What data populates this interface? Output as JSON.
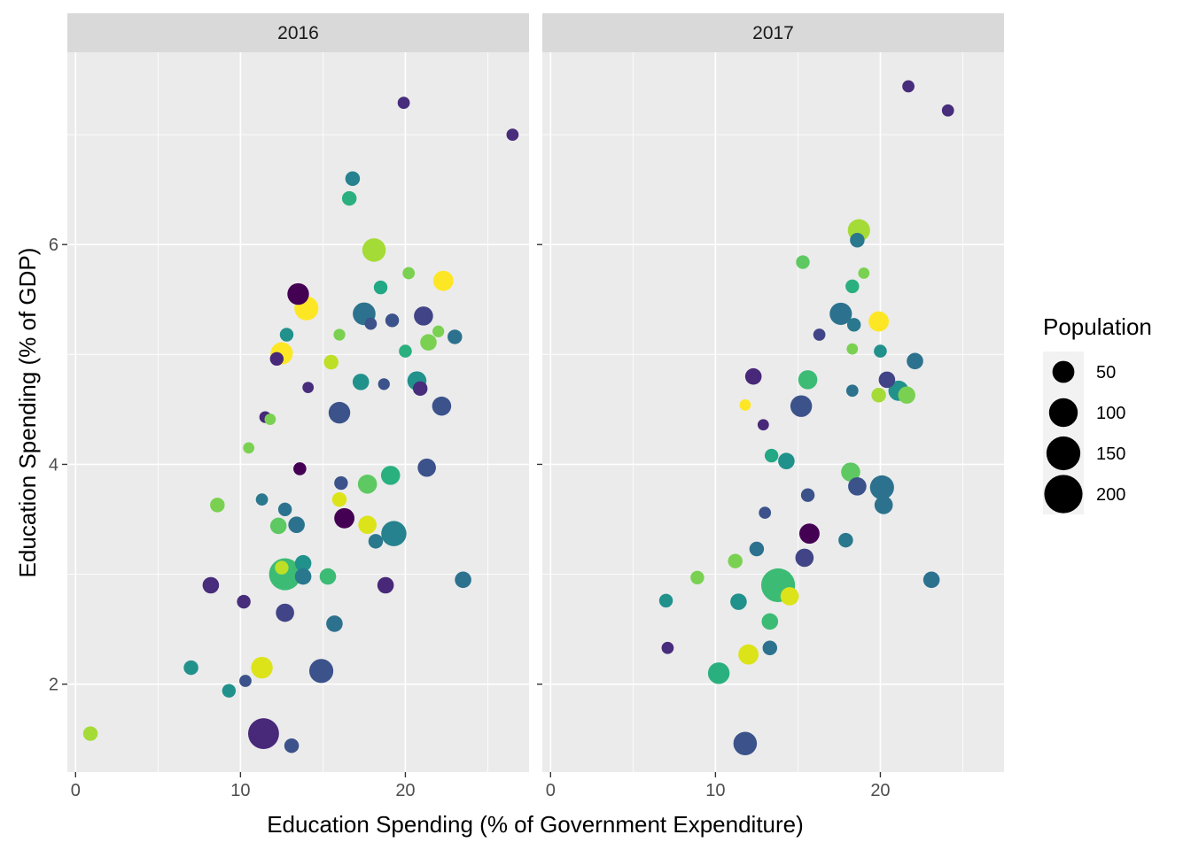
{
  "chart_data": {
    "type": "scatter",
    "xlabel": "Education Spending (% of Government Expenditure)",
    "ylabel": "Education Spending (% of GDP)",
    "xlim": [
      -0.5,
      27.5
    ],
    "ylim": [
      1.2,
      7.75
    ],
    "x_ticks": [
      0,
      10,
      20
    ],
    "y_ticks": [
      2,
      4,
      6
    ],
    "grid": true,
    "legend_position": "right",
    "size_legend": {
      "title": "Population",
      "entries": [
        {
          "label": "50",
          "value": 50
        },
        {
          "label": "100",
          "value": 100
        },
        {
          "label": "150",
          "value": 150
        },
        {
          "label": "200",
          "value": 200
        }
      ]
    },
    "panels": [
      {
        "name": "2016",
        "points": [
          {
            "x": 26.5,
            "y": 7.0,
            "size": 8,
            "color": "#472D7B"
          },
          {
            "x": 19.9,
            "y": 7.29,
            "size": 8,
            "color": "#472D7B"
          },
          {
            "x": 16.8,
            "y": 6.6,
            "size": 15,
            "color": "#26828E"
          },
          {
            "x": 16.6,
            "y": 6.42,
            "size": 15,
            "color": "#2AB07F"
          },
          {
            "x": 18.1,
            "y": 5.95,
            "size": 60,
            "color": "#A5DB36"
          },
          {
            "x": 20.2,
            "y": 5.74,
            "size": 8,
            "color": "#7AD151"
          },
          {
            "x": 22.3,
            "y": 5.67,
            "size": 40,
            "color": "#FDE725"
          },
          {
            "x": 18.5,
            "y": 5.61,
            "size": 12,
            "color": "#22A884"
          },
          {
            "x": 13.5,
            "y": 5.55,
            "size": 48,
            "color": "#440154"
          },
          {
            "x": 14.0,
            "y": 5.42,
            "size": 64,
            "color": "#FDE725"
          },
          {
            "x": 17.5,
            "y": 5.37,
            "size": 55,
            "color": "#2C728E"
          },
          {
            "x": 17.9,
            "y": 5.28,
            "size": 8,
            "color": "#3B528B"
          },
          {
            "x": 19.2,
            "y": 5.31,
            "size": 12,
            "color": "#3B528B"
          },
          {
            "x": 21.1,
            "y": 5.35,
            "size": 34,
            "color": "#414487"
          },
          {
            "x": 12.8,
            "y": 5.18,
            "size": 12,
            "color": "#21918C"
          },
          {
            "x": 16.0,
            "y": 5.18,
            "size": 7,
            "color": "#7AD151"
          },
          {
            "x": 22.0,
            "y": 5.21,
            "size": 7,
            "color": "#7AD151"
          },
          {
            "x": 23.0,
            "y": 5.16,
            "size": 15,
            "color": "#2C728E"
          },
          {
            "x": 21.4,
            "y": 5.11,
            "size": 22,
            "color": "#7AD151"
          },
          {
            "x": 12.5,
            "y": 5.01,
            "size": 52,
            "color": "#FDE725"
          },
          {
            "x": 12.2,
            "y": 4.96,
            "size": 12,
            "color": "#482878"
          },
          {
            "x": 20.0,
            "y": 5.03,
            "size": 10,
            "color": "#2AB07F"
          },
          {
            "x": 15.5,
            "y": 4.93,
            "size": 15,
            "color": "#BDDF26"
          },
          {
            "x": 17.3,
            "y": 4.75,
            "size": 22,
            "color": "#21918C"
          },
          {
            "x": 20.7,
            "y": 4.76,
            "size": 34,
            "color": "#21918C"
          },
          {
            "x": 14.1,
            "y": 4.7,
            "size": 6,
            "color": "#472D7B"
          },
          {
            "x": 18.7,
            "y": 4.73,
            "size": 7,
            "color": "#3B528B"
          },
          {
            "x": 20.9,
            "y": 4.69,
            "size": 15,
            "color": "#472D7B"
          },
          {
            "x": 16.0,
            "y": 4.47,
            "size": 48,
            "color": "#3B528B"
          },
          {
            "x": 22.2,
            "y": 4.53,
            "size": 34,
            "color": "#3B528B"
          },
          {
            "x": 11.5,
            "y": 4.43,
            "size": 7,
            "color": "#482878"
          },
          {
            "x": 11.8,
            "y": 4.41,
            "size": 6,
            "color": "#7AD151"
          },
          {
            "x": 10.5,
            "y": 4.15,
            "size": 6,
            "color": "#7AD151"
          },
          {
            "x": 13.6,
            "y": 3.96,
            "size": 10,
            "color": "#440154"
          },
          {
            "x": 21.3,
            "y": 3.97,
            "size": 30,
            "color": "#3B528B"
          },
          {
            "x": 19.1,
            "y": 3.9,
            "size": 34,
            "color": "#2AB07F"
          },
          {
            "x": 16.1,
            "y": 3.83,
            "size": 12,
            "color": "#3B528B"
          },
          {
            "x": 17.7,
            "y": 3.82,
            "size": 34,
            "color": "#5EC962"
          },
          {
            "x": 8.6,
            "y": 3.63,
            "size": 15,
            "color": "#7AD151"
          },
          {
            "x": 11.3,
            "y": 3.68,
            "size": 8,
            "color": "#2A788E"
          },
          {
            "x": 16.0,
            "y": 3.68,
            "size": 15,
            "color": "#DCE319"
          },
          {
            "x": 12.7,
            "y": 3.59,
            "size": 12,
            "color": "#2C728E"
          },
          {
            "x": 16.3,
            "y": 3.51,
            "size": 40,
            "color": "#440154"
          },
          {
            "x": 13.4,
            "y": 3.45,
            "size": 22,
            "color": "#2C728E"
          },
          {
            "x": 12.3,
            "y": 3.44,
            "size": 22,
            "color": "#5EC962"
          },
          {
            "x": 17.7,
            "y": 3.45,
            "size": 30,
            "color": "#DCE319"
          },
          {
            "x": 19.3,
            "y": 3.37,
            "size": 72,
            "color": "#26828E"
          },
          {
            "x": 18.2,
            "y": 3.3,
            "size": 15,
            "color": "#2A788E"
          },
          {
            "x": 13.8,
            "y": 3.1,
            "size": 22,
            "color": "#21918C"
          },
          {
            "x": 12.5,
            "y": 3.06,
            "size": 12,
            "color": "#BDDF26"
          },
          {
            "x": 12.7,
            "y": 3.0,
            "size": 130,
            "color": "#3CBB75"
          },
          {
            "x": 13.8,
            "y": 2.98,
            "size": 22,
            "color": "#2A788E"
          },
          {
            "x": 15.3,
            "y": 2.98,
            "size": 22,
            "color": "#3CBB75"
          },
          {
            "x": 23.5,
            "y": 2.95,
            "size": 22,
            "color": "#2C728E"
          },
          {
            "x": 8.2,
            "y": 2.9,
            "size": 22,
            "color": "#472D7B"
          },
          {
            "x": 18.8,
            "y": 2.9,
            "size": 22,
            "color": "#482878"
          },
          {
            "x": 10.2,
            "y": 2.75,
            "size": 12,
            "color": "#472D7B"
          },
          {
            "x": 12.7,
            "y": 2.65,
            "size": 30,
            "color": "#414487"
          },
          {
            "x": 15.7,
            "y": 2.55,
            "size": 22,
            "color": "#2C728E"
          },
          {
            "x": 7.0,
            "y": 2.15,
            "size": 15,
            "color": "#21918C"
          },
          {
            "x": 11.3,
            "y": 2.15,
            "size": 48,
            "color": "#DCE319"
          },
          {
            "x": 14.9,
            "y": 2.12,
            "size": 64,
            "color": "#3B528B"
          },
          {
            "x": 10.3,
            "y": 2.03,
            "size": 8,
            "color": "#3B528B"
          },
          {
            "x": 9.3,
            "y": 1.94,
            "size": 12,
            "color": "#21918C"
          },
          {
            "x": 0.9,
            "y": 1.55,
            "size": 15,
            "color": "#A5DB36"
          },
          {
            "x": 11.4,
            "y": 1.55,
            "size": 120,
            "color": "#482878"
          },
          {
            "x": 13.1,
            "y": 1.44,
            "size": 15,
            "color": "#3B528B"
          }
        ]
      },
      {
        "name": "2017",
        "points": [
          {
            "x": 21.7,
            "y": 7.44,
            "size": 8,
            "color": "#472D7B"
          },
          {
            "x": 24.1,
            "y": 7.22,
            "size": 8,
            "color": "#472D7B"
          },
          {
            "x": 18.6,
            "y": 6.04,
            "size": 15,
            "color": "#2A788E"
          },
          {
            "x": 18.7,
            "y": 6.13,
            "size": 52,
            "color": "#A5DB36"
          },
          {
            "x": 15.3,
            "y": 5.84,
            "size": 12,
            "color": "#5EC962"
          },
          {
            "x": 19.0,
            "y": 5.74,
            "size": 6,
            "color": "#7AD151"
          },
          {
            "x": 18.3,
            "y": 5.62,
            "size": 12,
            "color": "#2AB07F"
          },
          {
            "x": 17.6,
            "y": 5.37,
            "size": 52,
            "color": "#2C728E"
          },
          {
            "x": 19.9,
            "y": 5.3,
            "size": 40,
            "color": "#FDE725"
          },
          {
            "x": 18.4,
            "y": 5.27,
            "size": 12,
            "color": "#2A788E"
          },
          {
            "x": 16.3,
            "y": 5.18,
            "size": 8,
            "color": "#414487"
          },
          {
            "x": 20.0,
            "y": 5.03,
            "size": 10,
            "color": "#21918C"
          },
          {
            "x": 18.3,
            "y": 5.05,
            "size": 6,
            "color": "#7AD151"
          },
          {
            "x": 22.1,
            "y": 4.94,
            "size": 22,
            "color": "#2C728E"
          },
          {
            "x": 12.3,
            "y": 4.8,
            "size": 22,
            "color": "#482878"
          },
          {
            "x": 15.6,
            "y": 4.77,
            "size": 34,
            "color": "#3CBB75"
          },
          {
            "x": 20.4,
            "y": 4.77,
            "size": 22,
            "color": "#414487"
          },
          {
            "x": 21.1,
            "y": 4.67,
            "size": 40,
            "color": "#21918C"
          },
          {
            "x": 18.3,
            "y": 4.67,
            "size": 8,
            "color": "#2C728E"
          },
          {
            "x": 21.6,
            "y": 4.63,
            "size": 25,
            "color": "#7AD151"
          },
          {
            "x": 19.9,
            "y": 4.63,
            "size": 15,
            "color": "#A5DB36"
          },
          {
            "x": 15.2,
            "y": 4.53,
            "size": 48,
            "color": "#3B528B"
          },
          {
            "x": 11.8,
            "y": 4.54,
            "size": 6,
            "color": "#FDE725"
          },
          {
            "x": 12.9,
            "y": 4.36,
            "size": 6,
            "color": "#482878"
          },
          {
            "x": 13.4,
            "y": 4.08,
            "size": 12,
            "color": "#22A884"
          },
          {
            "x": 14.3,
            "y": 4.03,
            "size": 22,
            "color": "#21918C"
          },
          {
            "x": 18.2,
            "y": 3.93,
            "size": 34,
            "color": "#5EC962"
          },
          {
            "x": 18.6,
            "y": 3.8,
            "size": 30,
            "color": "#3B528B"
          },
          {
            "x": 20.1,
            "y": 3.79,
            "size": 64,
            "color": "#2C728E"
          },
          {
            "x": 15.6,
            "y": 3.72,
            "size": 12,
            "color": "#3B528B"
          },
          {
            "x": 20.2,
            "y": 3.63,
            "size": 30,
            "color": "#2C728E"
          },
          {
            "x": 13.0,
            "y": 3.56,
            "size": 8,
            "color": "#3B528B"
          },
          {
            "x": 15.7,
            "y": 3.37,
            "size": 40,
            "color": "#440154"
          },
          {
            "x": 17.9,
            "y": 3.31,
            "size": 15,
            "color": "#2A788E"
          },
          {
            "x": 12.5,
            "y": 3.23,
            "size": 15,
            "color": "#2C728E"
          },
          {
            "x": 11.2,
            "y": 3.12,
            "size": 15,
            "color": "#7AD151"
          },
          {
            "x": 15.4,
            "y": 3.15,
            "size": 30,
            "color": "#414487"
          },
          {
            "x": 8.9,
            "y": 2.97,
            "size": 12,
            "color": "#7AD151"
          },
          {
            "x": 13.8,
            "y": 2.9,
            "size": 150,
            "color": "#3CBB75"
          },
          {
            "x": 14.5,
            "y": 2.8,
            "size": 30,
            "color": "#DCE319"
          },
          {
            "x": 7.0,
            "y": 2.76,
            "size": 12,
            "color": "#21918C"
          },
          {
            "x": 11.4,
            "y": 2.75,
            "size": 22,
            "color": "#21918C"
          },
          {
            "x": 13.3,
            "y": 2.57,
            "size": 22,
            "color": "#3CBB75"
          },
          {
            "x": 7.1,
            "y": 2.33,
            "size": 8,
            "color": "#472D7B"
          },
          {
            "x": 13.3,
            "y": 2.33,
            "size": 15,
            "color": "#2C728E"
          },
          {
            "x": 12.0,
            "y": 2.27,
            "size": 40,
            "color": "#DCE319"
          },
          {
            "x": 10.2,
            "y": 2.1,
            "size": 48,
            "color": "#2AB07F"
          },
          {
            "x": 23.1,
            "y": 2.95,
            "size": 22,
            "color": "#2C728E"
          },
          {
            "x": 11.8,
            "y": 1.46,
            "size": 60,
            "color": "#3B528B"
          }
        ]
      }
    ]
  }
}
